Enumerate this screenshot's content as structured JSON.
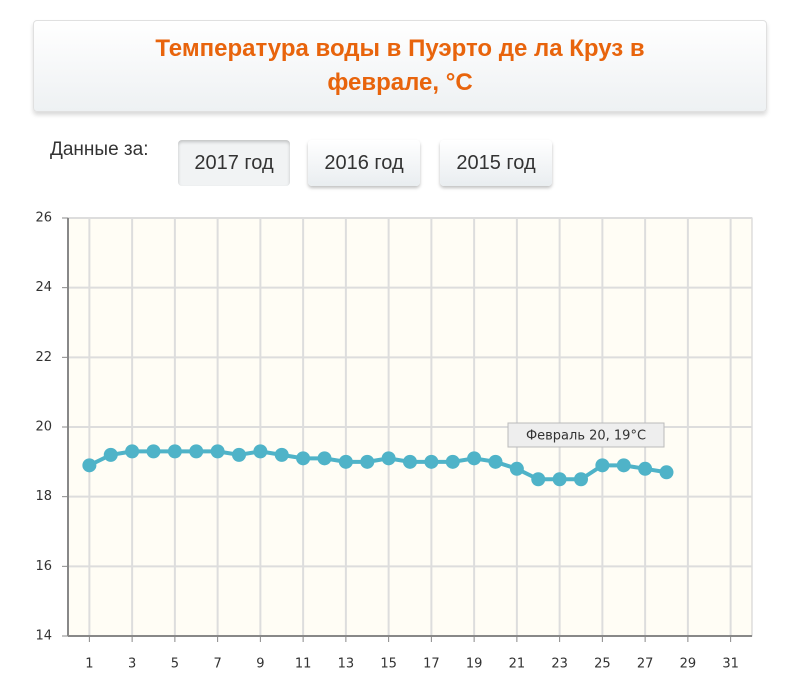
{
  "chart_data": {
    "type": "line",
    "title": "Температура воды в Пуэрто де ла Круз в феврале, °C",
    "x": [
      1,
      2,
      3,
      4,
      5,
      6,
      7,
      8,
      9,
      10,
      11,
      12,
      13,
      14,
      15,
      16,
      17,
      18,
      19,
      20,
      21,
      22,
      23,
      24,
      25,
      26,
      27,
      28
    ],
    "series": [
      {
        "name": "2017 год",
        "color": "#4fb3c8",
        "values": [
          18.9,
          19.2,
          19.3,
          19.3,
          19.3,
          19.3,
          19.3,
          19.2,
          19.3,
          19.2,
          19.1,
          19.1,
          19.0,
          19.0,
          19.1,
          19.0,
          19.0,
          19.0,
          19.1,
          19.0,
          18.8,
          18.5,
          18.5,
          18.5,
          18.9,
          18.9,
          18.8,
          18.7
        ]
      }
    ],
    "xlim": [
      0,
      32
    ],
    "xticks": [
      1,
      3,
      5,
      7,
      9,
      11,
      13,
      15,
      17,
      19,
      21,
      23,
      25,
      27,
      29,
      31
    ],
    "ylim": [
      14,
      26
    ],
    "yticks": [
      14,
      16,
      18,
      20,
      22,
      24,
      26
    ],
    "grid": true,
    "annotation": "Февраль 20, 19°C"
  },
  "controls": {
    "label": "Данные за:",
    "buttons": [
      "2017 год",
      "2016 год",
      "2015 год"
    ]
  }
}
